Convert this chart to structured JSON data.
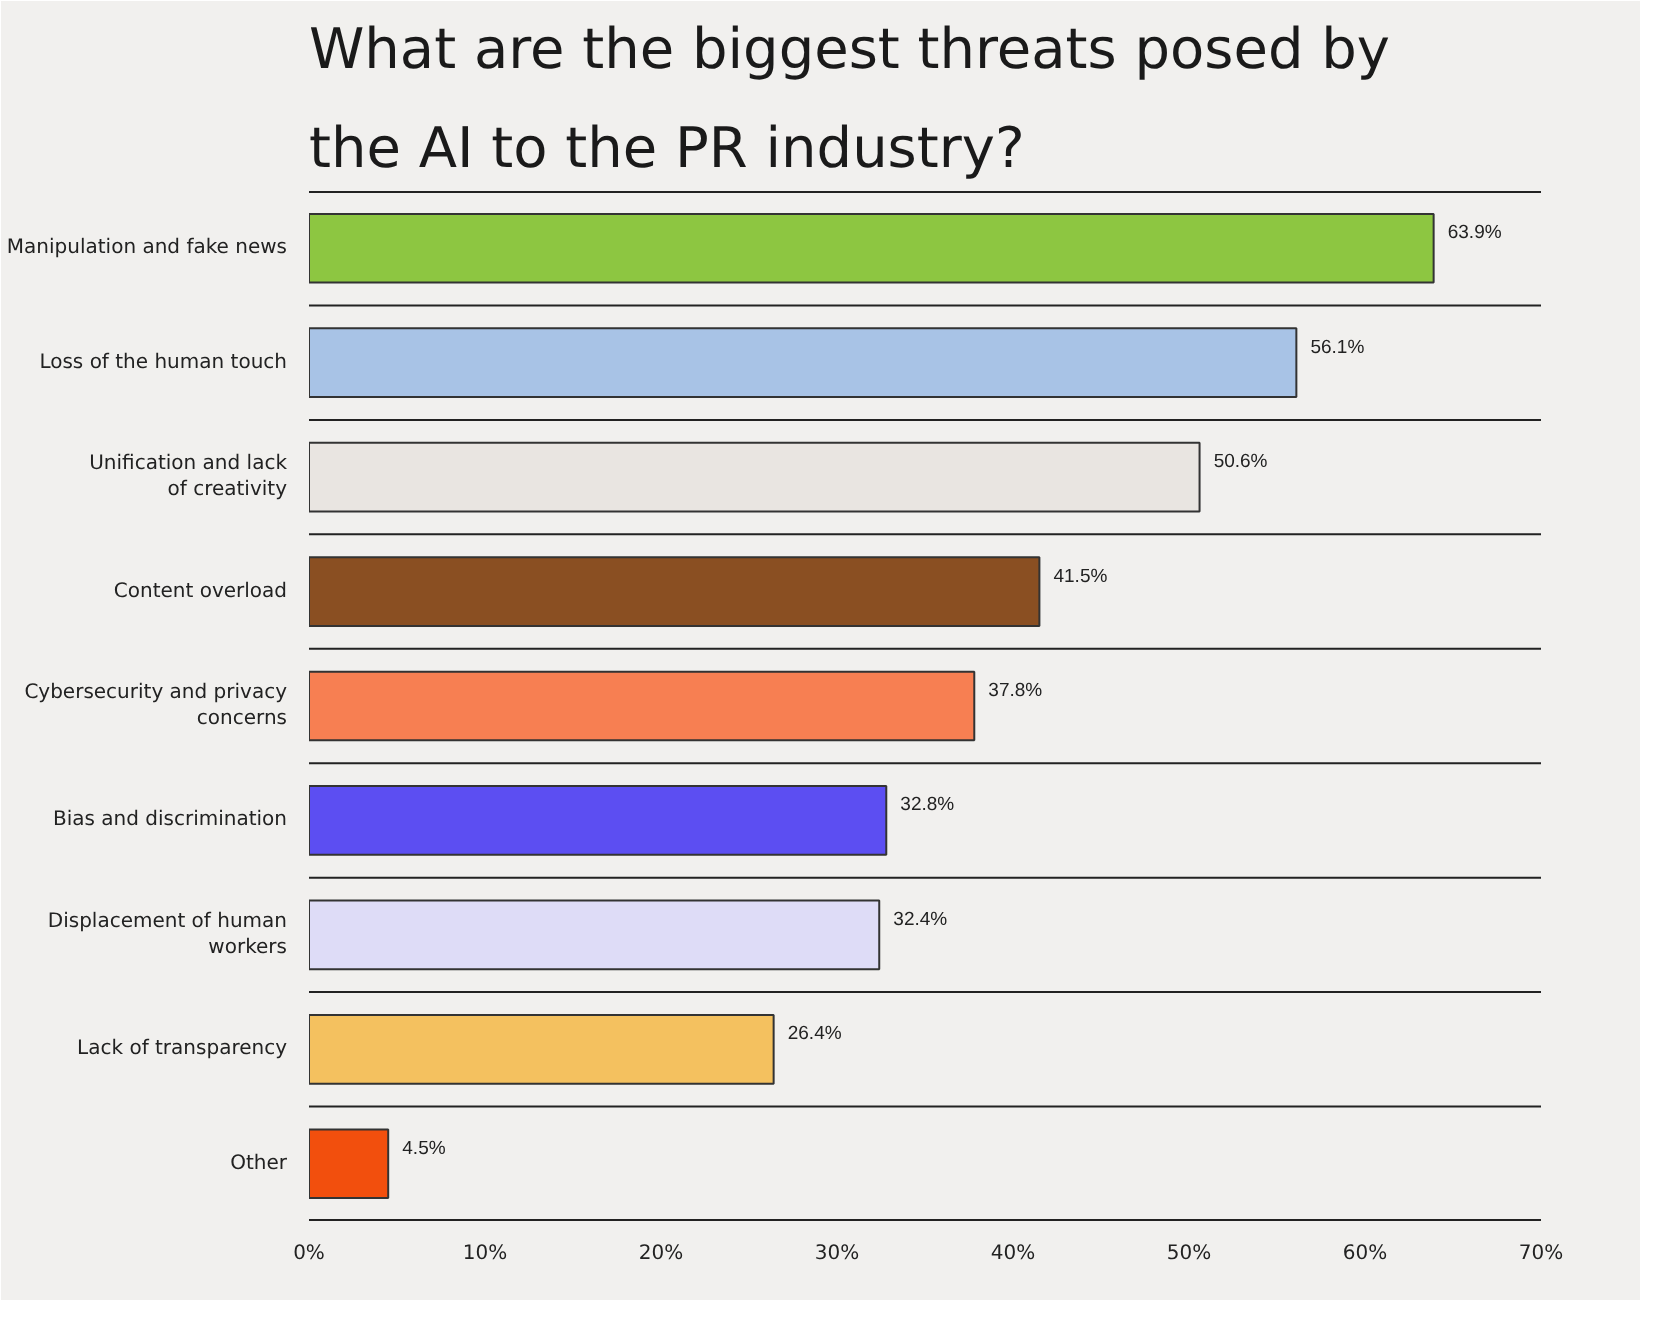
{
  "chart_data": {
    "type": "bar",
    "orientation": "horizontal",
    "title": "What are the biggest threats posed by\nthe AI to the PR industry?",
    "categories": [
      "Manipulation and fake news",
      "Loss of the human touch",
      "Unification and lack\nof creativity",
      "Content overload",
      "Cybersecurity and privacy\nconcerns",
      "Bias and discrimination",
      "Displacement of human\nworkers",
      "Lack of transparency",
      "Other"
    ],
    "values": [
      63.9,
      56.1,
      50.6,
      41.5,
      37.8,
      32.8,
      32.4,
      26.4,
      4.5
    ],
    "value_labels": [
      "63.9%",
      "56.1%",
      "50.6%",
      "41.5%",
      "37.8%",
      "32.8%",
      "32.4%",
      "26.4%",
      "4.5%"
    ],
    "colors": [
      "#8dc641",
      "#a8c3e6",
      "#e9e5e1",
      "#8a4f22",
      "#f77f52",
      "#5c4ef2",
      "#dedcf7",
      "#f4c15f",
      "#f24f0d"
    ],
    "xlim": [
      0,
      70
    ],
    "xticks": [
      {
        "value": 0,
        "label": "0%"
      },
      {
        "value": 10,
        "label": "10%"
      },
      {
        "value": 20,
        "label": "20%"
      },
      {
        "value": 30,
        "label": "30%"
      },
      {
        "value": 40,
        "label": "40%"
      },
      {
        "value": 50,
        "label": "50%"
      },
      {
        "value": 60,
        "label": "60%"
      },
      {
        "value": 70,
        "label": "70%"
      }
    ],
    "grid": false
  }
}
